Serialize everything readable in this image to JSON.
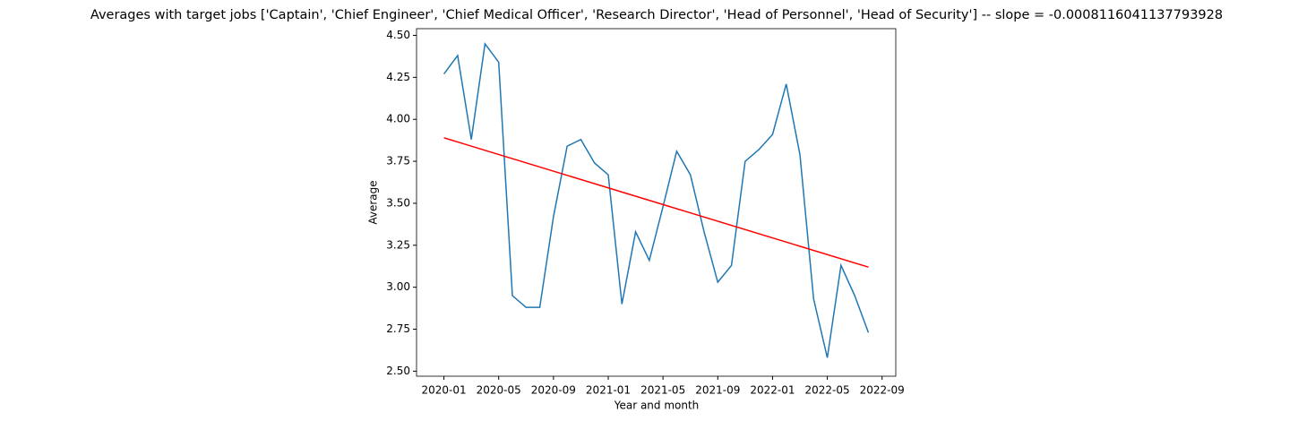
{
  "chart_data": {
    "type": "line",
    "title": "Averages with target jobs ['Captain', 'Chief Engineer', 'Chief Medical Officer', 'Research Director', 'Head of Personnel', 'Head of Security'] -- slope = -0.0008116041137793928",
    "xlabel": "Year and month",
    "ylabel": "Average",
    "x": [
      "2020-01",
      "2020-02",
      "2020-03",
      "2020-04",
      "2020-05",
      "2020-06",
      "2020-07",
      "2020-08",
      "2020-09",
      "2020-10",
      "2020-11",
      "2020-12",
      "2021-01",
      "2021-02",
      "2021-03",
      "2021-04",
      "2021-05",
      "2021-06",
      "2021-07",
      "2021-08",
      "2021-09",
      "2021-10",
      "2021-11",
      "2021-12",
      "2022-01",
      "2022-02",
      "2022-03",
      "2022-04",
      "2022-05",
      "2022-06",
      "2022-07",
      "2022-08"
    ],
    "series": [
      {
        "color": "#1f77b4",
        "values": [
          4.27,
          4.38,
          3.88,
          4.45,
          4.34,
          2.95,
          2.88,
          2.88,
          3.42,
          3.84,
          3.88,
          3.74,
          3.67,
          2.9,
          3.33,
          3.16,
          3.48,
          3.81,
          3.67,
          3.33,
          3.03,
          3.13,
          3.75,
          3.82,
          3.91,
          4.21,
          3.79,
          2.93,
          2.58,
          3.13,
          2.95,
          2.73
        ]
      },
      {
        "color": "#ff0000",
        "x": [
          "2020-01",
          "2022-08"
        ],
        "values": [
          3.89,
          3.12
        ]
      }
    ],
    "xlim": [
      "2019-11",
      "2022-10"
    ],
    "xticks": [
      "2020-01",
      "2020-05",
      "2020-09",
      "2021-01",
      "2021-05",
      "2021-09",
      "2022-01",
      "2022-05",
      "2022-09"
    ],
    "ylim": [
      2.47,
      4.54
    ],
    "yticks": [
      {
        "value": 2.5,
        "label": "2.50"
      },
      {
        "value": 2.75,
        "label": "2.75"
      },
      {
        "value": 3.0,
        "label": "3.00"
      },
      {
        "value": 3.25,
        "label": "3.25"
      },
      {
        "value": 3.5,
        "label": "3.50"
      },
      {
        "value": 3.75,
        "label": "3.75"
      },
      {
        "value": 4.0,
        "label": "4.00"
      },
      {
        "value": 4.25,
        "label": "4.25"
      },
      {
        "value": 4.5,
        "label": "4.50"
      }
    ]
  }
}
